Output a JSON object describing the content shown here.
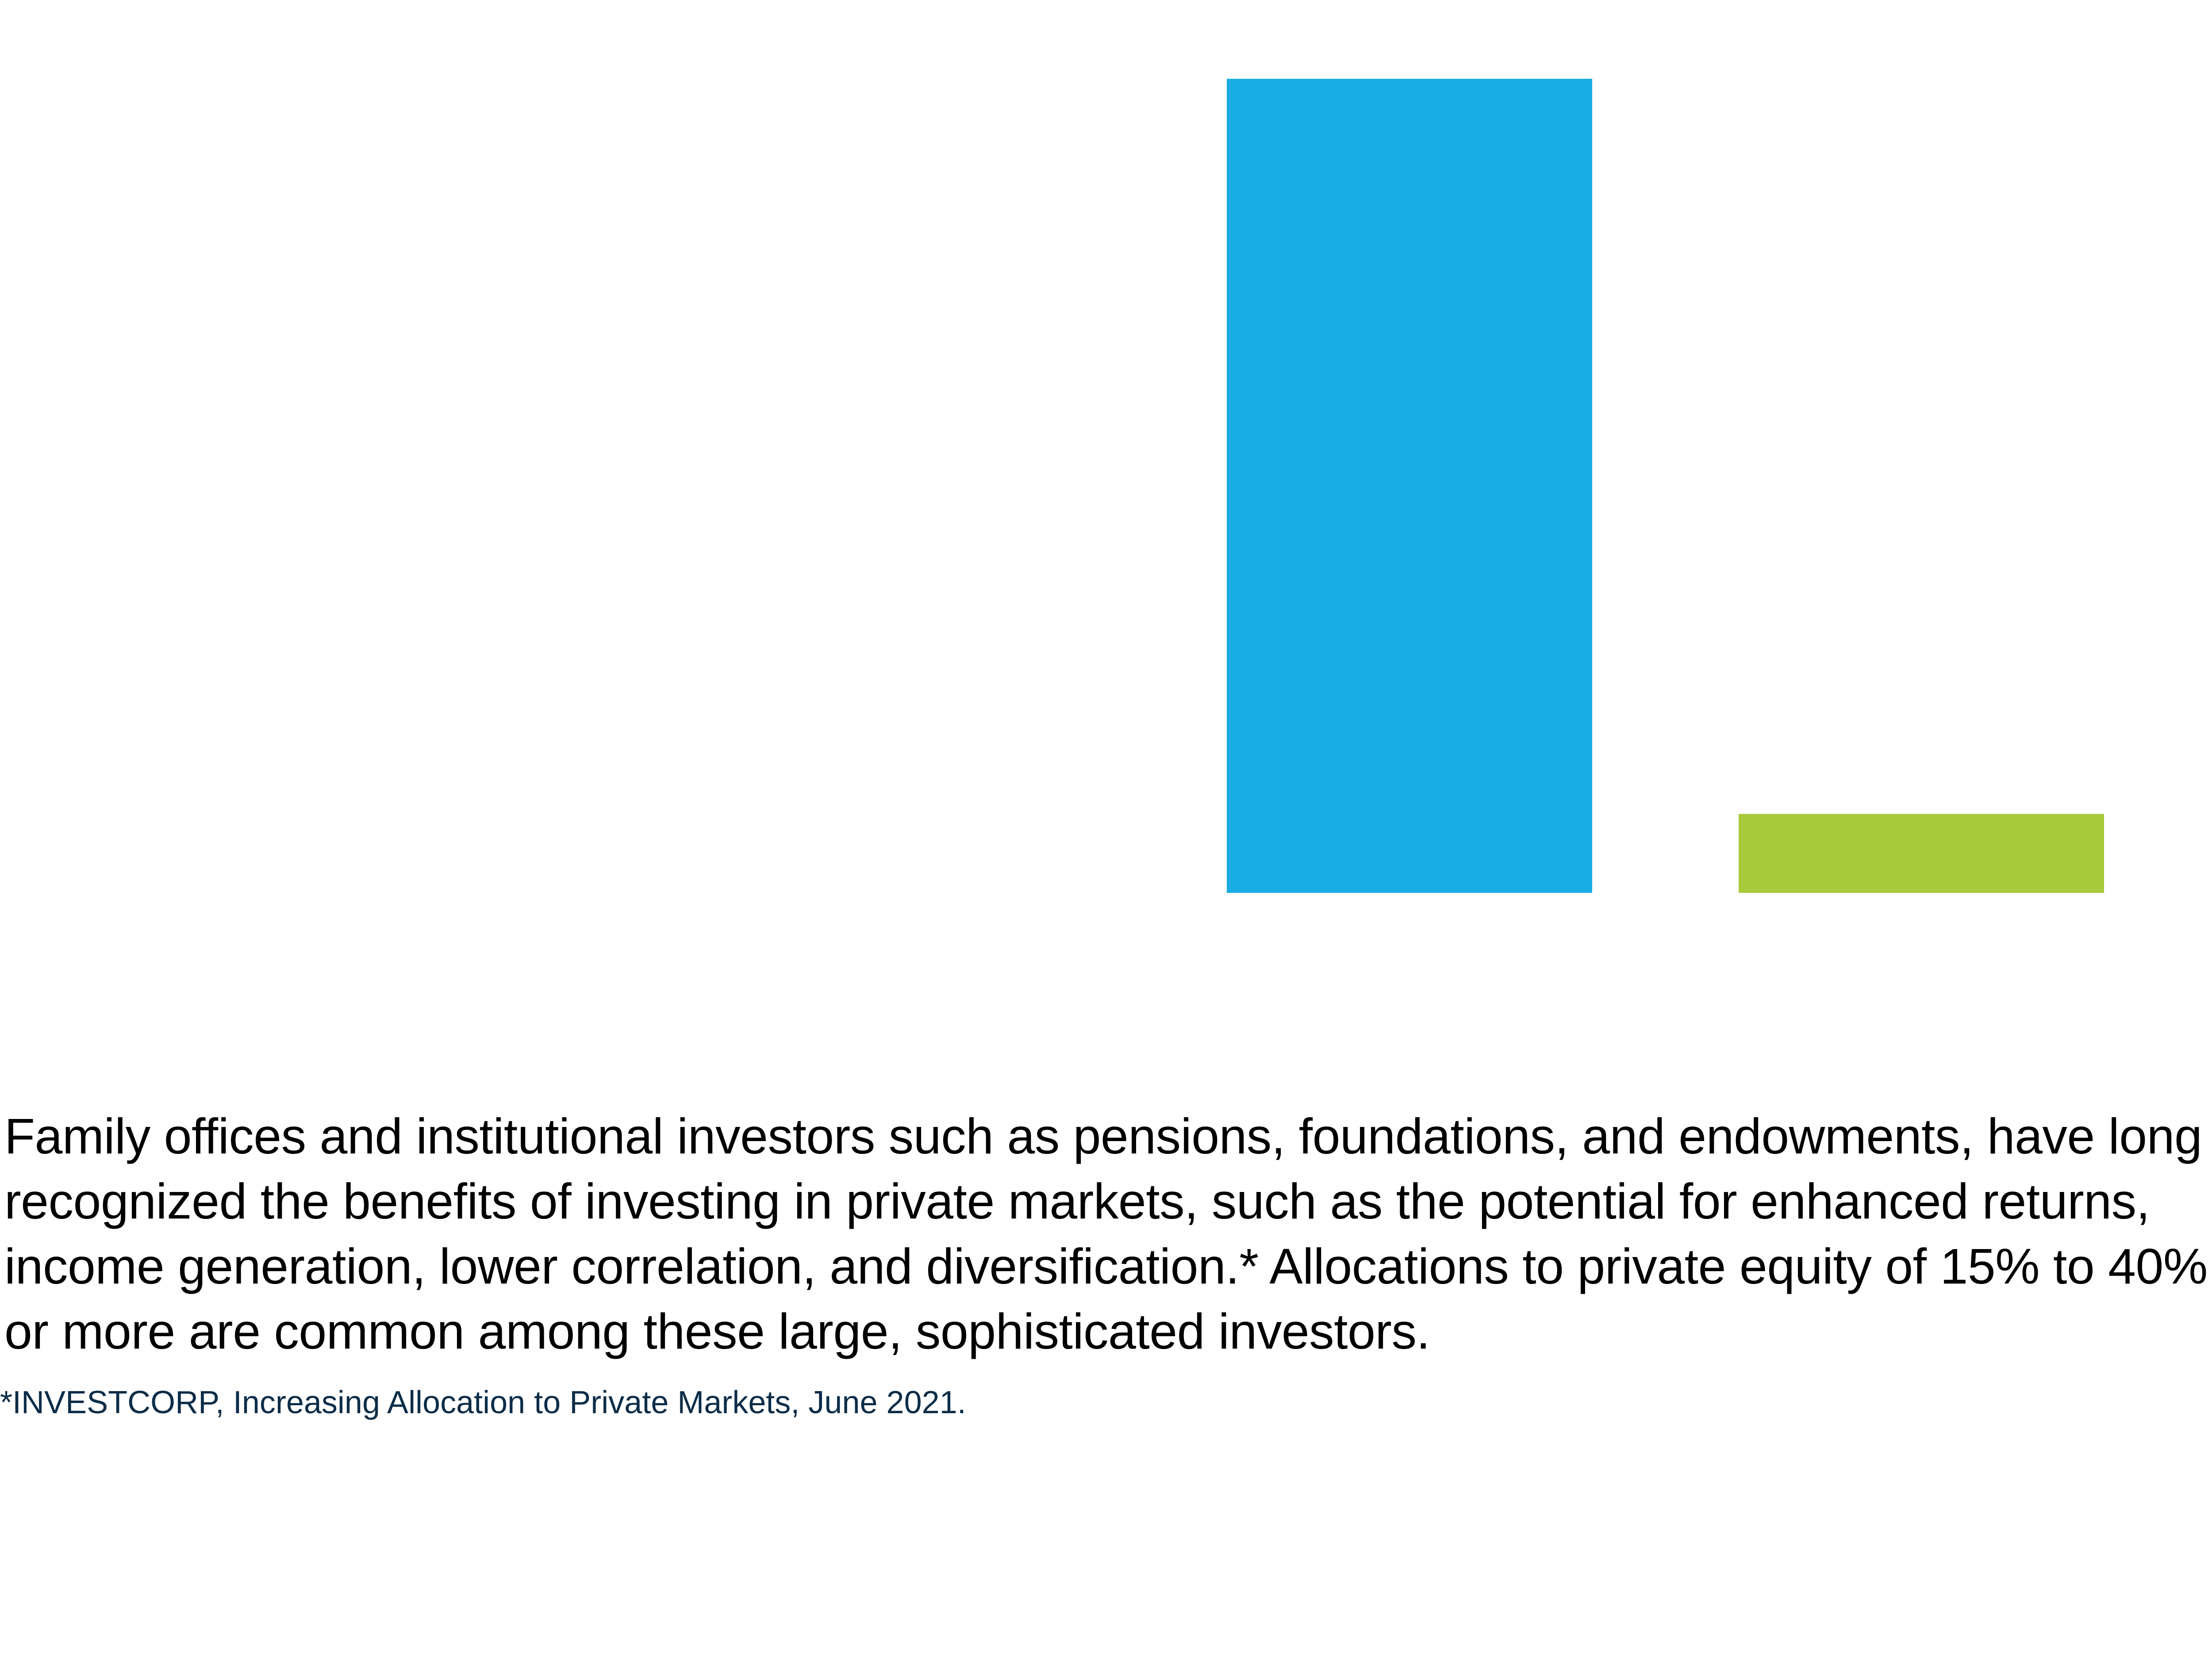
{
  "chart_data": {
    "type": "bar",
    "categories": [
      "",
      ""
    ],
    "values": [
      100,
      9.7
    ],
    "colors": [
      "#1aade3",
      "#a8c93a"
    ],
    "ylim": [
      0,
      100
    ],
    "grid": false,
    "title": "",
    "xlabel": "",
    "ylabel": ""
  },
  "body_text": "Family offices and institutional investors such as pensions, foundations, and endowments, have long recognized the benefits of investing in private markets, such as the potential for enhanced returns, income generation, lower correlation, and diversification.* Allocations to private equity of 15% to 40% or more are common among these large, sophisticated investors.",
  "footnote": "*INVESTCORP, Increasing Allocation to Private Markets, June 2021."
}
